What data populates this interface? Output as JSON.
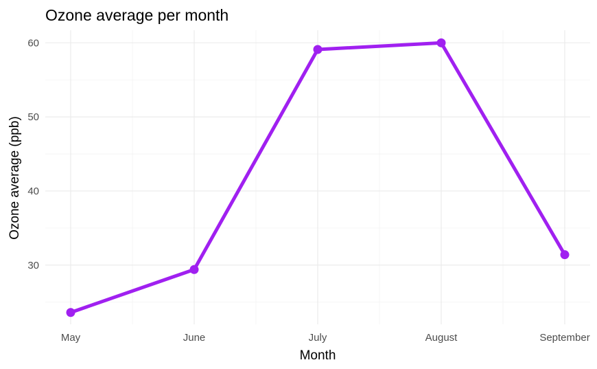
{
  "chart_data": {
    "type": "line",
    "title": "Ozone average per month",
    "xlabel": "Month",
    "ylabel": "Ozone average (ppb)",
    "categories": [
      "May",
      "June",
      "July",
      "August",
      "September"
    ],
    "series": [
      {
        "values": [
          23.6,
          29.4,
          59.1,
          60.0,
          31.4
        ]
      }
    ],
    "ylim": [
      22.0,
      61.7
    ],
    "y_ticks": [
      30,
      40,
      50,
      60
    ],
    "grid": true,
    "legend": "none",
    "colors": {
      "line": "#a020f0",
      "grid": "#ebebeb"
    }
  }
}
